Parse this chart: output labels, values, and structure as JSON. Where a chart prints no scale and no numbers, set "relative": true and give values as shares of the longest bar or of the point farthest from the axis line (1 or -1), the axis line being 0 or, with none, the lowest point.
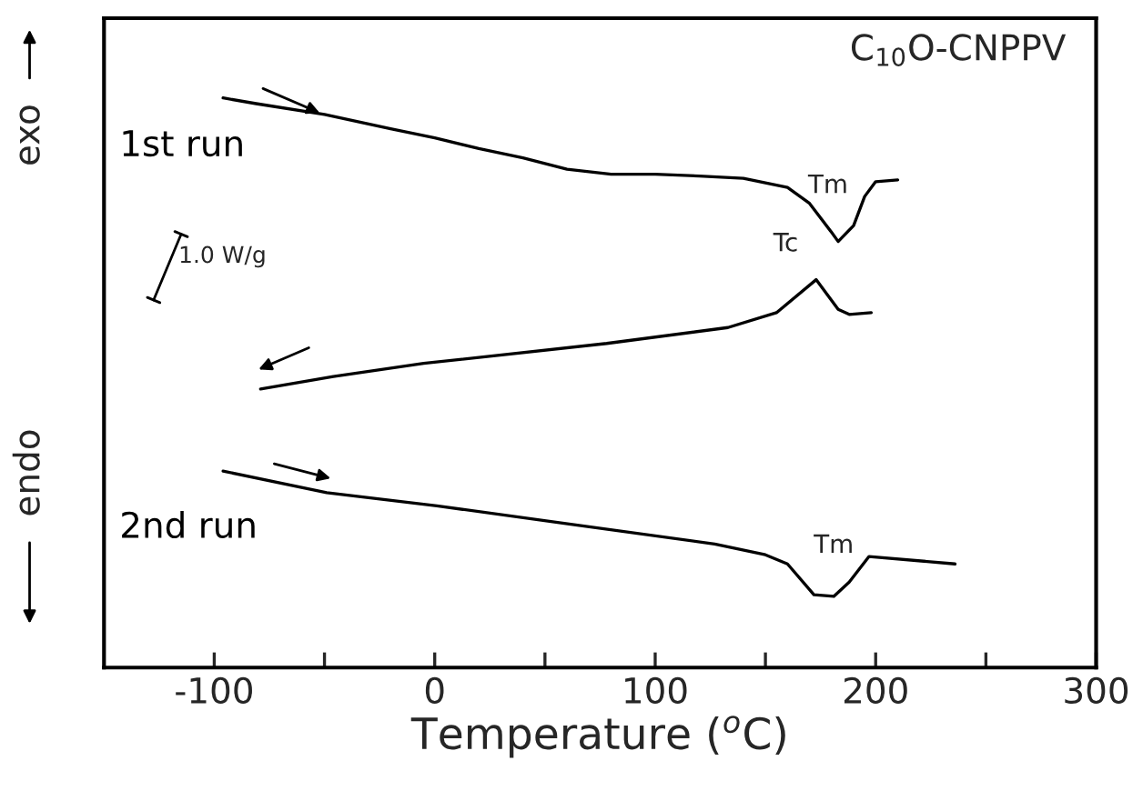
{
  "chart_data": {
    "type": "line",
    "relative": true,
    "title": "C$_{10}$O-CNPPV",
    "xlabel": "Temperature ($^{o}$C)",
    "xlim": [
      -150,
      300
    ],
    "xticks": [
      {
        "value": -100,
        "label": "-100"
      },
      {
        "value": -50,
        "label": null
      },
      0,
      {
        "value": 50,
        "label": null
      },
      100,
      {
        "value": 150,
        "label": null
      },
      200,
      {
        "value": 250,
        "label": null
      },
      300
    ],
    "series": [
      {
        "name": "1st run",
        "color": "#000000",
        "x": [
          -96,
          -81,
          -50,
          -20,
          0,
          20,
          40,
          60,
          80,
          100,
          120,
          140,
          160,
          170,
          180,
          183,
          190,
          195,
          200,
          210
        ],
        "values": [
          1.0,
          0.99,
          0.971,
          0.946,
          0.93,
          0.911,
          0.895,
          0.875,
          0.866,
          0.866,
          0.863,
          0.859,
          0.843,
          0.815,
          0.764,
          0.748,
          0.776,
          0.827,
          0.853,
          0.856
        ]
      },
      {
        "color": "#000000",
        "x": [
          -79,
          -46,
          -5,
          78,
          133,
          155,
          173,
          183,
          188,
          198
        ],
        "values": [
          0.489,
          0.511,
          0.534,
          0.569,
          0.597,
          0.623,
          0.681,
          0.629,
          0.62,
          0.623
        ]
      },
      {
        "name": "2nd run",
        "color": "#000000",
        "x": [
          -96,
          -49,
          1,
          61,
          127,
          150,
          160,
          172,
          181,
          188,
          197,
          236
        ],
        "values": [
          0.345,
          0.307,
          0.284,
          0.252,
          0.217,
          0.198,
          0.182,
          0.128,
          0.125,
          0.15,
          0.195,
          0.182
        ]
      }
    ],
    "annotations": [
      {
        "text": "Tm",
        "x": 183,
        "y": 0.748
      },
      {
        "text": "Tc",
        "x": 173,
        "y": 0.681
      },
      {
        "text": "Tm",
        "x": 181,
        "y": 0.125
      },
      "1.0 W/g",
      "exo",
      "endo"
    ],
    "marker": "none",
    "line_style": "solid",
    "grid": false,
    "legend": false
  }
}
